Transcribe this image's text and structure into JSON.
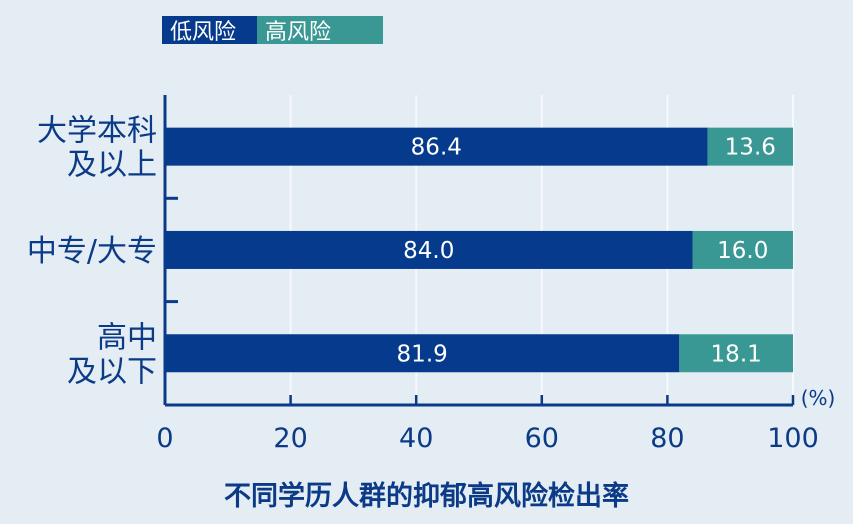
{
  "legend": {
    "low": "低风险",
    "high": "高风险"
  },
  "title": "不同学历人群的抑郁高风险检出率",
  "colors": {
    "low": "#063a8c",
    "high": "#3a9894",
    "axis": "#0b3a86",
    "background": "#e4ecf4"
  },
  "chart_data": {
    "type": "bar",
    "orientation": "horizontal",
    "stacked": true,
    "title": "不同学历人群的抑郁高风险检出率",
    "unit": "(%)",
    "categories": [
      [
        "大学本科",
        "及以上"
      ],
      [
        "中专/大专"
      ],
      [
        "高中",
        "及以下"
      ]
    ],
    "series": [
      {
        "name": "低风险",
        "values": [
          86.4,
          84.0,
          81.9
        ],
        "labels": [
          "86.4",
          "84.0",
          "81.9"
        ]
      },
      {
        "name": "高风险",
        "values": [
          13.6,
          16.0,
          18.1
        ],
        "labels": [
          "13.6",
          "16.0",
          "18.1"
        ]
      }
    ],
    "xlim": [
      0,
      100
    ],
    "xticks": [
      0,
      20,
      40,
      60,
      80,
      100
    ],
    "legend_position": "top-left",
    "grid": true
  }
}
